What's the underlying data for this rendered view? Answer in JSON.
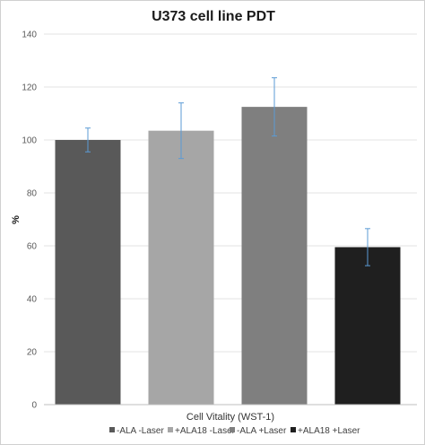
{
  "chart_data": {
    "type": "bar",
    "title": "U373 cell line PDT",
    "xlabel": "Cell Vitality (WST-1)",
    "ylabel": "%",
    "ylim": [
      0,
      140
    ],
    "yticks": [
      0,
      20,
      40,
      60,
      80,
      100,
      120,
      140
    ],
    "grid": true,
    "legend_position": "bottom",
    "categories": [
      "-ALA -Laser",
      "+ALA18 -Laser",
      "-ALA +Laser",
      "+ALA18 +Laser"
    ],
    "values": [
      100,
      103.5,
      112.5,
      59.5
    ],
    "errors": [
      4.5,
      10.5,
      11,
      7
    ],
    "colors": [
      "#595959",
      "#a6a6a6",
      "#7f7f7f",
      "#1f1f1f"
    ],
    "error_bar_color": "#5b9bd5"
  }
}
